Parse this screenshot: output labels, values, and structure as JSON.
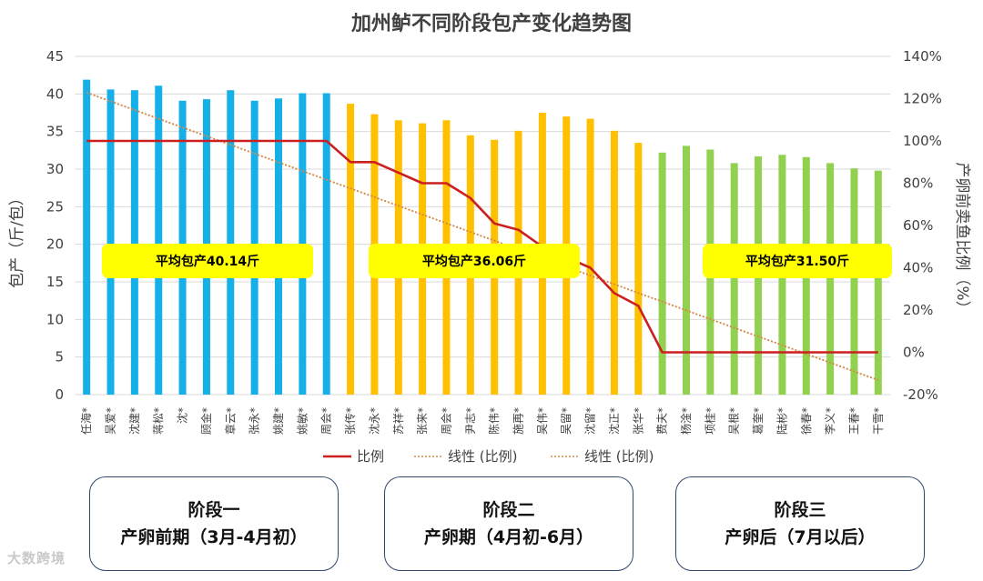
{
  "chart_data": {
    "type": "bar",
    "title": "加州鲈不同阶段包产变化趋势图",
    "ylabel": "包产（斤/包）",
    "y2label": "产卵前卖鱼比例（%）",
    "ylim": [
      0,
      45
    ],
    "yticks": [
      "0",
      "5",
      "10",
      "15",
      "20",
      "25",
      "30",
      "35",
      "40",
      "45"
    ],
    "y2lim": [
      -20,
      140
    ],
    "y2ticks": [
      "-20%",
      "0%",
      "20%",
      "40%",
      "60%",
      "80%",
      "100%",
      "120%",
      "140%"
    ],
    "categories": [
      "任海",
      "吴爱",
      "沈建",
      "蒋松",
      "沈",
      "顾金",
      "章云",
      "张永",
      "姚建",
      "姚敏",
      "周会",
      "张传",
      "沈永",
      "苏祥",
      "张来",
      "周会",
      "尹志",
      "陈伟",
      "施再",
      "吴伟",
      "吴留",
      "沈留",
      "沈正",
      "张华",
      "费夫",
      "杨淦",
      "项桂",
      "吴根",
      "葛奎",
      "陆彬",
      "徐春",
      "李义",
      "王春",
      "干雪"
    ],
    "category_suffix": "*",
    "values": [
      41.9,
      40.6,
      40.5,
      41.1,
      39.1,
      39.3,
      40.5,
      39.1,
      39.4,
      40.1,
      40.1,
      38.7,
      37.3,
      36.5,
      36.1,
      36.5,
      34.5,
      33.9,
      35.1,
      37.5,
      37.0,
      36.7,
      35.1,
      33.5,
      32.2,
      33.1,
      32.6,
      30.8,
      31.7,
      31.9,
      31.6,
      30.8,
      30.1,
      29.8
    ],
    "bar_stages": [
      1,
      1,
      1,
      1,
      1,
      1,
      1,
      1,
      1,
      1,
      1,
      2,
      2,
      2,
      2,
      2,
      2,
      2,
      2,
      2,
      2,
      2,
      2,
      2,
      3,
      3,
      3,
      3,
      3,
      3,
      3,
      3,
      3,
      3
    ],
    "series": [
      {
        "name": "比例",
        "type": "line",
        "axis": "right",
        "values": [
          100,
          100,
          100,
          100,
          100,
          100,
          100,
          100,
          100,
          100,
          100,
          90,
          90,
          85,
          80,
          80,
          73,
          61,
          58,
          50,
          45,
          40,
          28,
          22,
          0,
          0,
          0,
          0,
          0,
          0,
          0,
          0,
          0,
          0
        ]
      },
      {
        "name": "线性 (比例)",
        "type": "trend",
        "axis": "right",
        "start": 123,
        "end": -13
      },
      {
        "name": "线性 (比例)",
        "type": "trend",
        "axis": "right",
        "start": 123,
        "end": -13
      }
    ],
    "legend": [
      "比例",
      "线性 (比例)",
      "线性 (比例)"
    ],
    "annotations": [
      "平均包产40.14斤",
      "平均包产36.06斤",
      "平均包产31.50斤"
    ]
  },
  "colors": {
    "stage1": "#16b0e8",
    "stage2": "#ffc000",
    "stage3": "#92d050",
    "line": "#cc1f1f",
    "trend": "#d58a4a",
    "callout": "#ffff00",
    "grid": "#d9d9d9"
  },
  "stages": [
    {
      "name": "阶段一",
      "period": "产卵前期（3月-4月初）"
    },
    {
      "name": "阶段二",
      "period": "产卵期（4月初-6月）"
    },
    {
      "name": "阶段三",
      "period": "产卵后（7月以后）"
    }
  ],
  "watermark": "大数跨境"
}
